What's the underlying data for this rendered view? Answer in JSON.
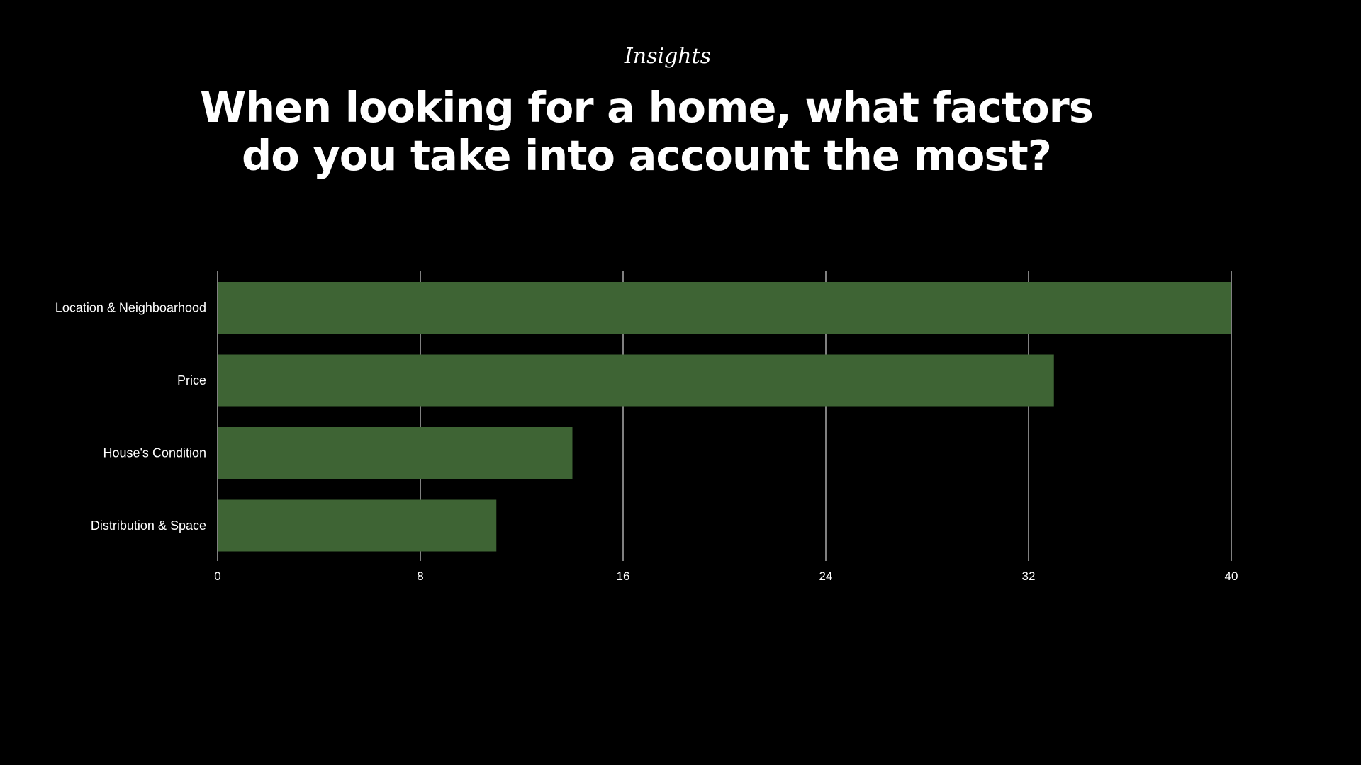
{
  "header": {
    "eyebrow": "Insights",
    "title": "When looking for a home, what factors do you take into account the most?"
  },
  "colors": {
    "background": "#000000",
    "bar": "#3e6434",
    "grid": "#ffffff",
    "text": "#ffffff"
  },
  "chart_data": {
    "type": "bar",
    "orientation": "horizontal",
    "title": "When looking for a home, what factors do you take into account the most?",
    "categories": [
      "Location & Neighboarhood",
      "Price",
      "House's Condition",
      "Distribution & Space"
    ],
    "values": [
      40,
      33,
      14,
      11
    ],
    "xlim": [
      0,
      40
    ],
    "xticks": [
      0,
      8,
      16,
      24,
      32,
      40
    ],
    "xlabel": "",
    "ylabel": "",
    "grid": true,
    "legend": "none"
  }
}
